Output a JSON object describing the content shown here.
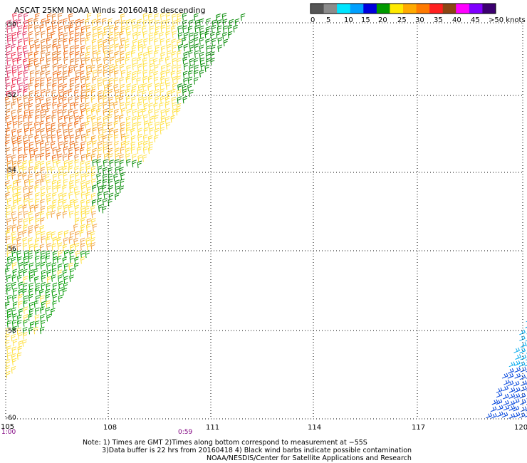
{
  "title": "ASCAT 25KM NOAA Winds 20160418 descending",
  "colorbar": {
    "colors": [
      "#555555",
      "#8c8c8c",
      "#00e5ff",
      "#00a0ff",
      "#0000dd",
      "#009a00",
      "#ffe900",
      "#ffaa00",
      "#ff7a00",
      "#ff2020",
      "#8b4513",
      "#ff00ff",
      "#8000ff",
      "#3c0070"
    ],
    "labels": [
      "0",
      "5",
      "10",
      "15",
      "20",
      "25",
      "30",
      "35",
      "40",
      "45",
      ">50 knots"
    ]
  },
  "map": {
    "lon_labels": [
      "105",
      "108",
      "111",
      "114",
      "117",
      "120"
    ],
    "lat_labels": [
      "-50",
      "-52",
      "-54",
      "-56",
      "-58",
      "-60"
    ],
    "times": [
      "1:00",
      "0:59"
    ]
  },
  "notes": {
    "line1": "Note: 1) Times are GMT 2)Times along bottom correspond to measurement at −55S",
    "line2": "3)Data buffer is 22 hrs from 20160418 4) Black wind barbs indicate possible contamination",
    "line3": "NOAA/NESDIS/Center for Satellite Applications and Research"
  }
}
